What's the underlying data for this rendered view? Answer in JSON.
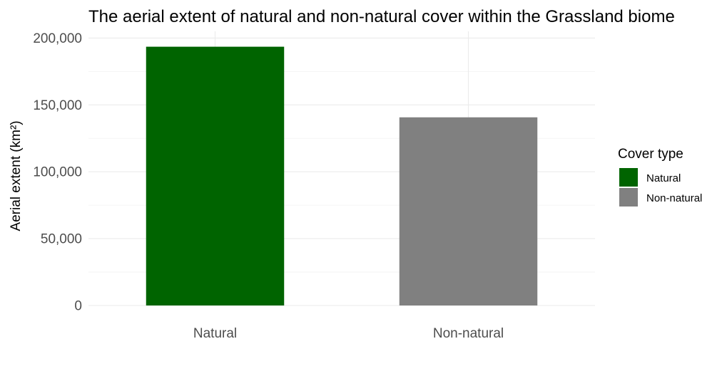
{
  "chart_data": {
    "type": "bar",
    "title": "The aerial extent of natural and non-natural cover within the Grassland biome",
    "xlabel": "",
    "ylabel": "Aerial extent (km²)",
    "categories": [
      "Natural",
      "Non-natural"
    ],
    "values": [
      193500,
      140700
    ],
    "colors": [
      "#006400",
      "#808080"
    ],
    "ylim": [
      0,
      205000
    ],
    "yticks": [
      0,
      50000,
      100000,
      150000,
      200000
    ],
    "ytick_labels": [
      "0",
      "50,000",
      "100,000",
      "150,000",
      "200,000"
    ],
    "grid": true,
    "legend": {
      "title": "Cover type",
      "position": "right",
      "items": [
        {
          "label": "Natural",
          "color": "#006400"
        },
        {
          "label": "Non-natural",
          "color": "#808080"
        }
      ]
    }
  }
}
